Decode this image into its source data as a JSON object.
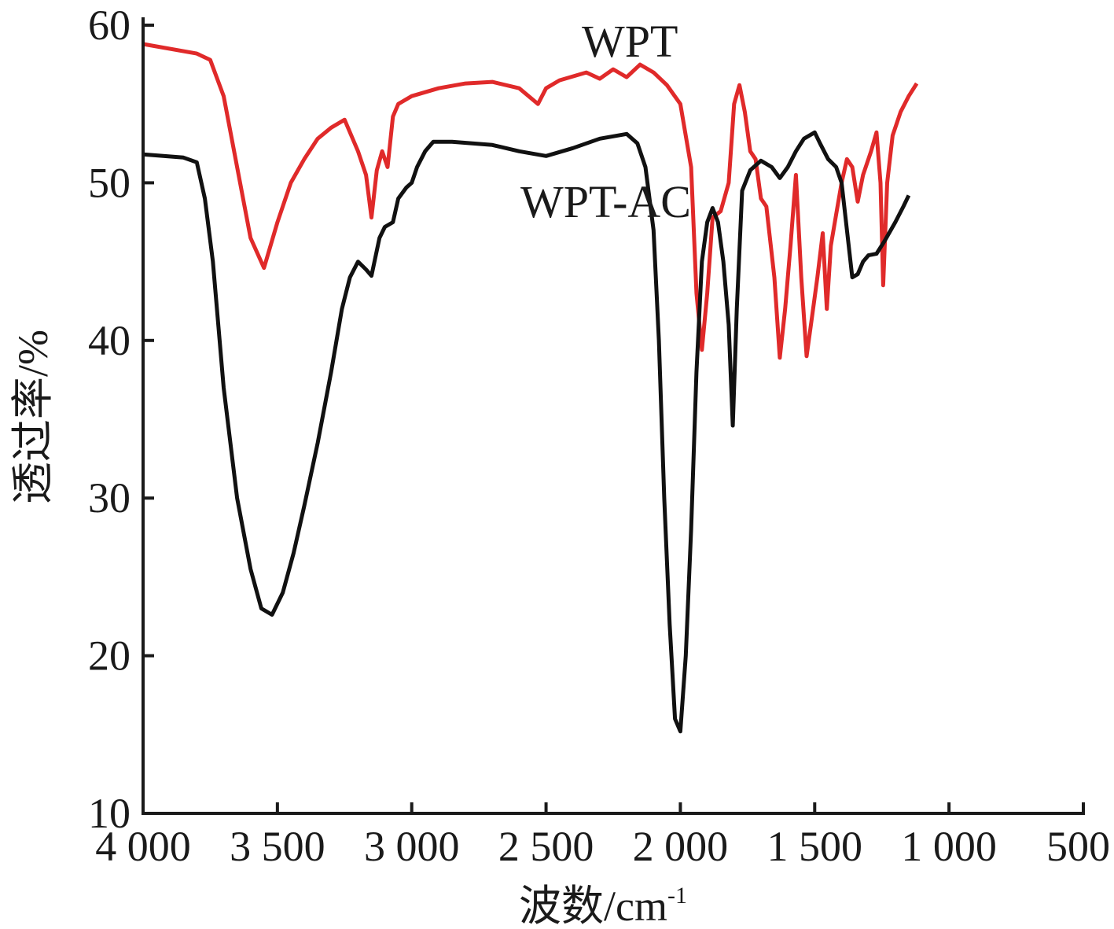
{
  "chart_data": {
    "type": "line",
    "xlabel": "波数/cm",
    "xlabel_sup": "-1",
    "ylabel": "透过率/%",
    "xlim": [
      4000,
      500
    ],
    "ylim": [
      10,
      60
    ],
    "x_reversed": true,
    "grid": false,
    "legend": "inline labels",
    "x_ticks": [
      4000,
      3500,
      3000,
      2500,
      2000,
      1500,
      1000,
      500
    ],
    "x_tick_labels": [
      "4 000",
      "3 500",
      "3 000",
      "2 500",
      "2 000",
      "1 500",
      "1 000",
      "500"
    ],
    "y_ticks": [
      10,
      20,
      30,
      40,
      50,
      60
    ],
    "y_tick_labels": [
      "10",
      "20",
      "30",
      "40",
      "50",
      "60"
    ],
    "series": [
      {
        "name": "WPT",
        "color": "#e02a2a",
        "points": [
          [
            4000,
            58.8
          ],
          [
            3800,
            58.2
          ],
          [
            3750,
            57.8
          ],
          [
            3700,
            55.5
          ],
          [
            3650,
            51.0
          ],
          [
            3600,
            46.5
          ],
          [
            3550,
            44.6
          ],
          [
            3500,
            47.5
          ],
          [
            3450,
            50.0
          ],
          [
            3400,
            51.5
          ],
          [
            3350,
            52.8
          ],
          [
            3300,
            53.5
          ],
          [
            3250,
            54.0
          ],
          [
            3200,
            52.0
          ],
          [
            3170,
            50.5
          ],
          [
            3150,
            47.8
          ],
          [
            3130,
            50.8
          ],
          [
            3110,
            52.0
          ],
          [
            3090,
            51.0
          ],
          [
            3070,
            54.2
          ],
          [
            3050,
            55.0
          ],
          [
            3000,
            55.5
          ],
          [
            2900,
            56.0
          ],
          [
            2800,
            56.3
          ],
          [
            2700,
            56.4
          ],
          [
            2600,
            56.0
          ],
          [
            2530,
            55.0
          ],
          [
            2500,
            56.0
          ],
          [
            2450,
            56.5
          ],
          [
            2350,
            57.0
          ],
          [
            2300,
            56.6
          ],
          [
            2250,
            57.2
          ],
          [
            2200,
            56.7
          ],
          [
            2150,
            57.5
          ],
          [
            2100,
            57.0
          ],
          [
            2050,
            56.2
          ],
          [
            2000,
            55.0
          ],
          [
            1960,
            51.0
          ],
          [
            1940,
            43.0
          ],
          [
            1920,
            39.4
          ],
          [
            1900,
            43.0
          ],
          [
            1880,
            47.8
          ],
          [
            1850,
            48.2
          ],
          [
            1820,
            50.0
          ],
          [
            1800,
            55.0
          ],
          [
            1780,
            56.2
          ],
          [
            1760,
            54.5
          ],
          [
            1740,
            52.0
          ],
          [
            1720,
            51.5
          ],
          [
            1700,
            49.0
          ],
          [
            1680,
            48.5
          ],
          [
            1650,
            44.0
          ],
          [
            1630,
            38.9
          ],
          [
            1610,
            42.0
          ],
          [
            1590,
            46.0
          ],
          [
            1570,
            50.5
          ],
          [
            1550,
            44.0
          ],
          [
            1530,
            39.0
          ],
          [
            1510,
            41.5
          ],
          [
            1490,
            44.0
          ],
          [
            1470,
            46.8
          ],
          [
            1455,
            42.0
          ],
          [
            1440,
            46.0
          ],
          [
            1420,
            48.0
          ],
          [
            1400,
            50.0
          ],
          [
            1380,
            51.5
          ],
          [
            1360,
            51.0
          ],
          [
            1340,
            48.8
          ],
          [
            1320,
            50.5
          ],
          [
            1290,
            52.0
          ],
          [
            1270,
            53.2
          ],
          [
            1255,
            50.0
          ],
          [
            1245,
            43.5
          ],
          [
            1230,
            50.0
          ],
          [
            1210,
            53.0
          ],
          [
            1180,
            54.5
          ],
          [
            1150,
            55.5
          ],
          [
            1120,
            56.3
          ]
        ]
      },
      {
        "name": "WPT-AC",
        "color": "#111111",
        "points": [
          [
            4000,
            51.8
          ],
          [
            3850,
            51.6
          ],
          [
            3800,
            51.3
          ],
          [
            3770,
            49.0
          ],
          [
            3740,
            45.0
          ],
          [
            3700,
            37.0
          ],
          [
            3650,
            30.0
          ],
          [
            3600,
            25.5
          ],
          [
            3560,
            23.0
          ],
          [
            3520,
            22.6
          ],
          [
            3480,
            24.0
          ],
          [
            3440,
            26.5
          ],
          [
            3400,
            29.5
          ],
          [
            3350,
            33.5
          ],
          [
            3300,
            38.0
          ],
          [
            3260,
            42.0
          ],
          [
            3230,
            44.0
          ],
          [
            3200,
            45.0
          ],
          [
            3170,
            44.5
          ],
          [
            3150,
            44.1
          ],
          [
            3120,
            46.5
          ],
          [
            3100,
            47.2
          ],
          [
            3070,
            47.5
          ],
          [
            3050,
            49.0
          ],
          [
            3020,
            49.7
          ],
          [
            3000,
            50.0
          ],
          [
            2980,
            51.0
          ],
          [
            2950,
            52.0
          ],
          [
            2920,
            52.6
          ],
          [
            2850,
            52.6
          ],
          [
            2700,
            52.4
          ],
          [
            2600,
            52.0
          ],
          [
            2500,
            51.7
          ],
          [
            2400,
            52.2
          ],
          [
            2300,
            52.8
          ],
          [
            2200,
            53.1
          ],
          [
            2160,
            52.5
          ],
          [
            2130,
            51.0
          ],
          [
            2100,
            47.0
          ],
          [
            2080,
            40.0
          ],
          [
            2060,
            30.0
          ],
          [
            2040,
            22.0
          ],
          [
            2020,
            16.0
          ],
          [
            2000,
            15.2
          ],
          [
            1980,
            20.0
          ],
          [
            1960,
            28.0
          ],
          [
            1940,
            38.0
          ],
          [
            1920,
            45.0
          ],
          [
            1900,
            47.5
          ],
          [
            1880,
            48.4
          ],
          [
            1860,
            47.5
          ],
          [
            1840,
            45.0
          ],
          [
            1820,
            41.0
          ],
          [
            1805,
            34.6
          ],
          [
            1790,
            42.0
          ],
          [
            1770,
            49.5
          ],
          [
            1740,
            50.8
          ],
          [
            1700,
            51.4
          ],
          [
            1660,
            51.0
          ],
          [
            1630,
            50.3
          ],
          [
            1600,
            51.0
          ],
          [
            1570,
            52.0
          ],
          [
            1540,
            52.8
          ],
          [
            1500,
            53.2
          ],
          [
            1480,
            52.5
          ],
          [
            1450,
            51.5
          ],
          [
            1420,
            51.0
          ],
          [
            1400,
            50.0
          ],
          [
            1380,
            47.0
          ],
          [
            1360,
            44.0
          ],
          [
            1340,
            44.2
          ],
          [
            1320,
            45.0
          ],
          [
            1300,
            45.4
          ],
          [
            1270,
            45.5
          ],
          [
            1240,
            46.3
          ],
          [
            1200,
            47.5
          ],
          [
            1170,
            48.5
          ],
          [
            1150,
            49.2
          ]
        ]
      }
    ]
  }
}
